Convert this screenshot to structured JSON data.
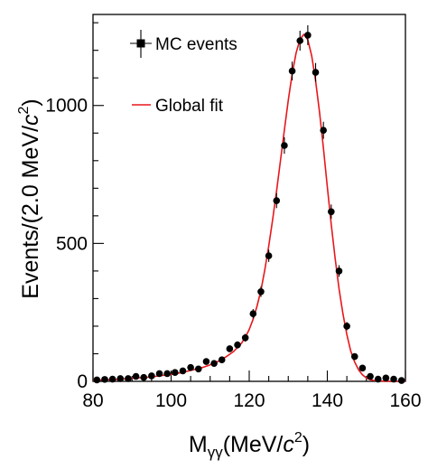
{
  "chart_data": {
    "type": "scatter",
    "x_label_parts": {
      "main": "M",
      "sub": "γγ",
      "pre": "(MeV/",
      "var": "c",
      "sup": "2",
      "post": ")"
    },
    "y_label_parts": {
      "pre": "Events/(2.0 MeV/",
      "var": "c",
      "sup": "2",
      "post": ")"
    },
    "xlim": [
      80,
      160
    ],
    "ylim": [
      0,
      1330
    ],
    "x_ticks": [
      80,
      100,
      120,
      140,
      160
    ],
    "x_tick_labels": [
      "80",
      "100",
      "120",
      "140",
      "160"
    ],
    "y_ticks": [
      0,
      500,
      1000
    ],
    "y_tick_labels": [
      "0",
      "500",
      "1000"
    ],
    "x_minor_step": 5,
    "y_minor_step": 100,
    "grid": false,
    "legend_position": "top-left",
    "series": [
      {
        "name": "MC events",
        "kind": "points-with-errors",
        "color": "#000000",
        "x": [
          81,
          83,
          85,
          87,
          89,
          91,
          93,
          95,
          97,
          99,
          101,
          103,
          105,
          107,
          109,
          111,
          113,
          115,
          117,
          119,
          121,
          123,
          125,
          127,
          129,
          131,
          133,
          135,
          137,
          139,
          141,
          143,
          145,
          147,
          149,
          151,
          153,
          155,
          157,
          159
        ],
        "y": [
          5,
          7,
          8,
          10,
          10,
          18,
          14,
          20,
          28,
          28,
          32,
          38,
          50,
          45,
          72,
          65,
          78,
          118,
          132,
          158,
          245,
          325,
          455,
          655,
          855,
          1125,
          1235,
          1255,
          1120,
          910,
          615,
          400,
          200,
          90,
          48,
          18,
          8,
          12,
          8,
          3
        ],
        "err": [
          3,
          3,
          3,
          4,
          4,
          5,
          5,
          5,
          6,
          6,
          6,
          7,
          8,
          8,
          9,
          9,
          10,
          12,
          13,
          14,
          17,
          19,
          22,
          27,
          30,
          34,
          36,
          36,
          34,
          31,
          26,
          21,
          15,
          10,
          8,
          5,
          4,
          4,
          3,
          2
        ]
      },
      {
        "name": "Global fit",
        "kind": "line",
        "color": "#e8171b",
        "x": [
          80,
          82,
          84,
          86,
          88,
          90,
          92,
          94,
          96,
          98,
          100,
          102,
          104,
          106,
          108,
          110,
          112,
          114,
          116,
          118,
          119,
          120,
          121,
          122,
          123,
          124,
          125,
          126,
          127,
          128,
          129,
          130,
          131,
          132,
          133,
          134,
          135,
          136,
          137,
          138,
          139,
          140,
          141,
          142,
          143,
          144,
          145,
          146,
          147,
          148,
          149,
          150,
          151,
          152,
          154,
          156,
          158,
          160
        ],
        "y": [
          4,
          5,
          6,
          7,
          9,
          11,
          13,
          15,
          18,
          22,
          25,
          30,
          36,
          43,
          50,
          60,
          72,
          88,
          108,
          138,
          160,
          188,
          225,
          272,
          330,
          405,
          490,
          585,
          690,
          800,
          910,
          1020,
          1115,
          1190,
          1240,
          1258,
          1238,
          1180,
          1090,
          975,
          845,
          705,
          570,
          445,
          335,
          245,
          170,
          110,
          70,
          42,
          24,
          12,
          6,
          3,
          1,
          0,
          0,
          0
        ]
      }
    ]
  }
}
